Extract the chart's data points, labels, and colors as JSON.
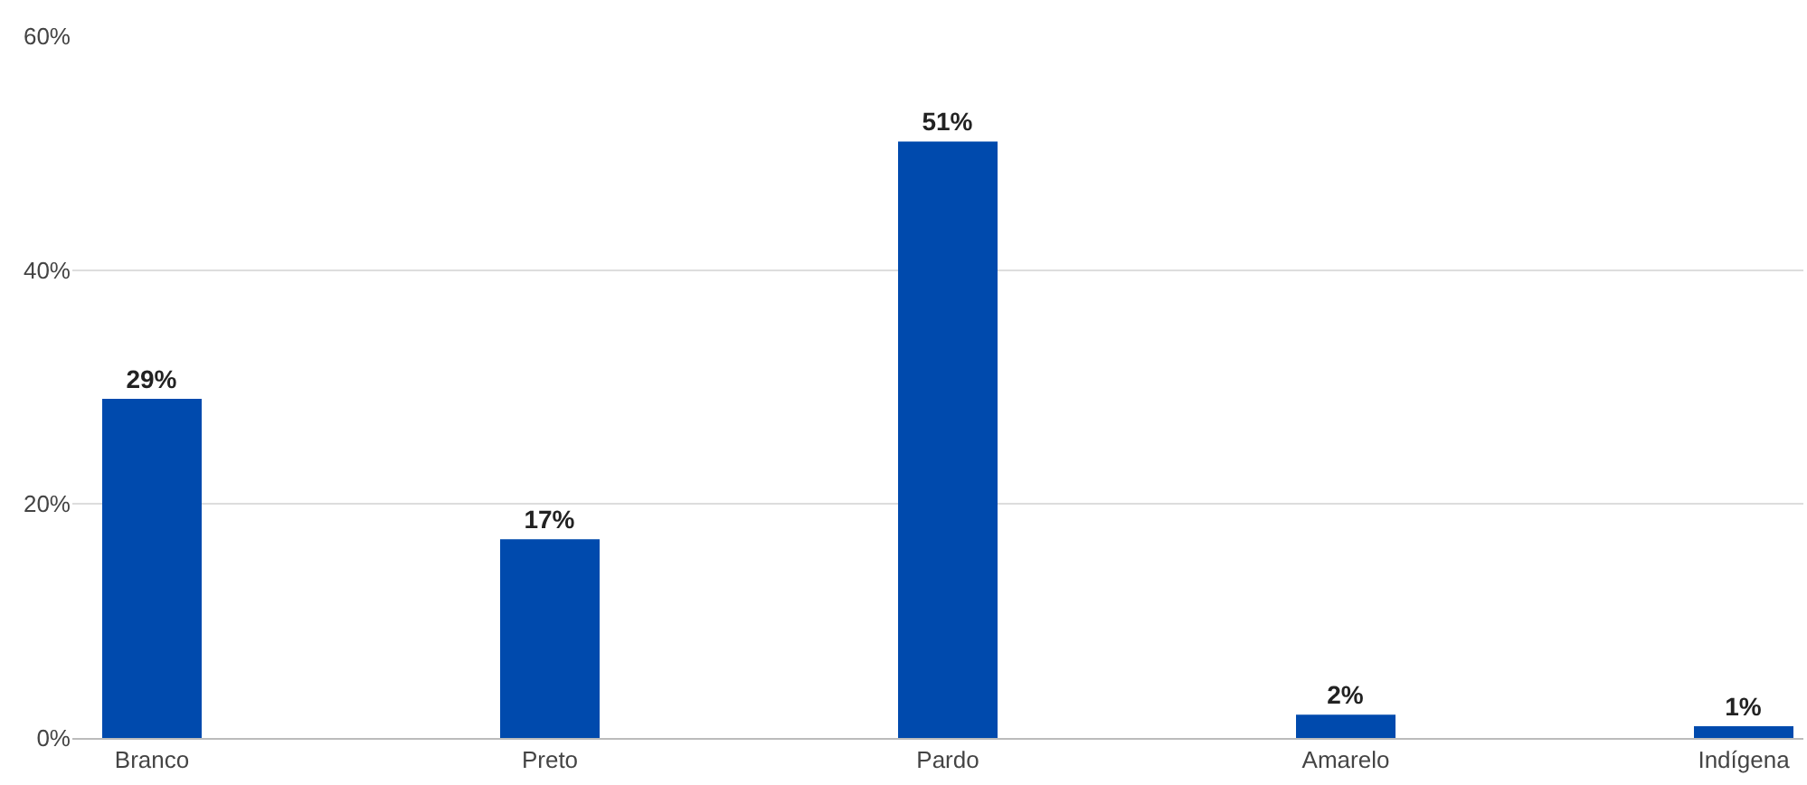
{
  "chart_data": {
    "type": "bar",
    "categories": [
      "Branco",
      "Preto",
      "Pardo",
      "Amarelo",
      "Indígena"
    ],
    "values": [
      29,
      17,
      51,
      2,
      1
    ],
    "value_labels": [
      "29%",
      "17%",
      "51%",
      "2%",
      "1%"
    ],
    "color": "#004aad",
    "ylim": [
      0,
      60
    ],
    "yticks": [
      {
        "value": 0,
        "label": "0%"
      },
      {
        "value": 20,
        "label": "20%"
      },
      {
        "value": 40,
        "label": "40%"
      },
      {
        "value": 60,
        "label": "60%"
      }
    ],
    "grid": "y",
    "legend": false
  }
}
